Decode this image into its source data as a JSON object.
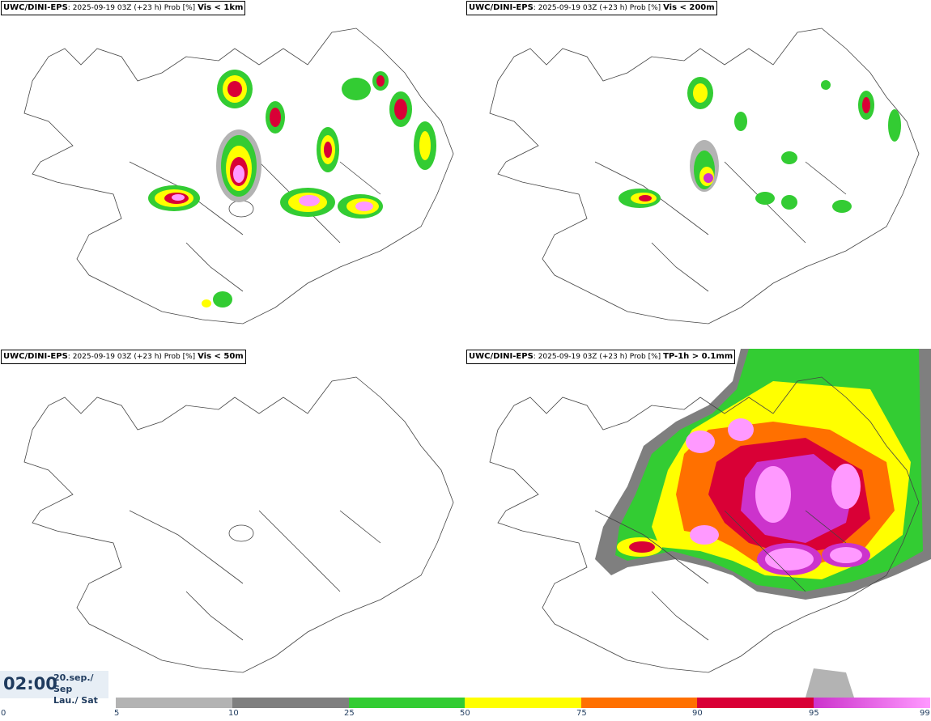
{
  "panels": [
    {
      "model": "UWC/DINI-EPS",
      "sep": ":",
      "run": "2025-09-19 03Z (+23 h) Prob [%]",
      "variable": "Vis < 1km"
    },
    {
      "model": "UWC/DINI-EPS",
      "sep": ":",
      "run": "2025-09-19 03Z (+23 h) Prob [%]",
      "variable": "Vis < 200m"
    },
    {
      "model": "UWC/DINI-EPS",
      "sep": ":",
      "run": "2025-09-19 03Z (+23 h) Prob [%]",
      "variable": "Vis < 50m"
    },
    {
      "model": "UWC/DINI-EPS",
      "sep": ":",
      "run": "2025-09-19 03Z (+23 h) Prob [%]",
      "variable": "TP-1h > 0.1mm"
    }
  ],
  "valid_time": {
    "time": "02:00",
    "date_line": "20.sep./ Sep",
    "day_line": "Lau./ Sat"
  },
  "colorbar": {
    "ticks": [
      "0",
      "5",
      "10",
      "25",
      "50",
      "75",
      "90",
      "95",
      "99"
    ],
    "colors": [
      "#b3b3b3",
      "#7f7f7f",
      "#33cc33",
      "#ffff00",
      "#ff7000",
      "#d90036",
      "#cc33cc",
      "#ff99ff"
    ]
  }
}
